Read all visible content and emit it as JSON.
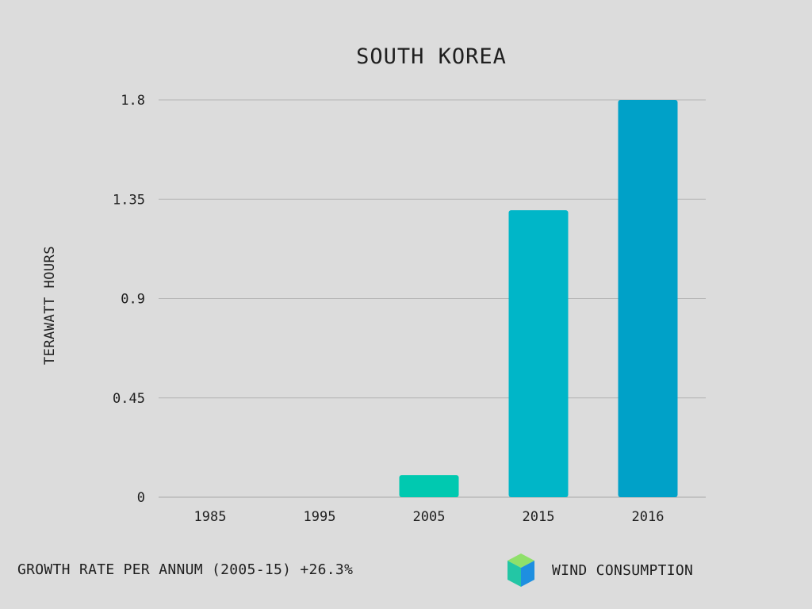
{
  "chart_data": {
    "type": "bar",
    "title": "SOUTH KOREA",
    "xlabel": "",
    "ylabel": "TERAWATT HOURS",
    "categories": [
      "1985",
      "1995",
      "2005",
      "2015",
      "2016"
    ],
    "series": [
      {
        "name": "WIND CONSUMPTION",
        "values": [
          0,
          0,
          0.1,
          1.3,
          1.8
        ],
        "colors": [
          "#00c9b0",
          "#00c4bf",
          "#00c9b0",
          "#00b6c8",
          "#00a1c8"
        ]
      }
    ],
    "y_ticks": [
      "0",
      "0.45",
      "0.9",
      "1.35",
      "1.8"
    ],
    "ylim": [
      0,
      1.8
    ],
    "grid": true,
    "legend_position": "bottom-right"
  },
  "footer": {
    "growth_note": "GROWTH RATE PER ANNUM (2005-15) +26.3%"
  },
  "legend": {
    "icon": "cube-icon",
    "label": "WIND CONSUMPTION",
    "icon_colors": {
      "top": "#8fe06a",
      "left": "#23c6a5",
      "right": "#1e8fe0"
    }
  }
}
